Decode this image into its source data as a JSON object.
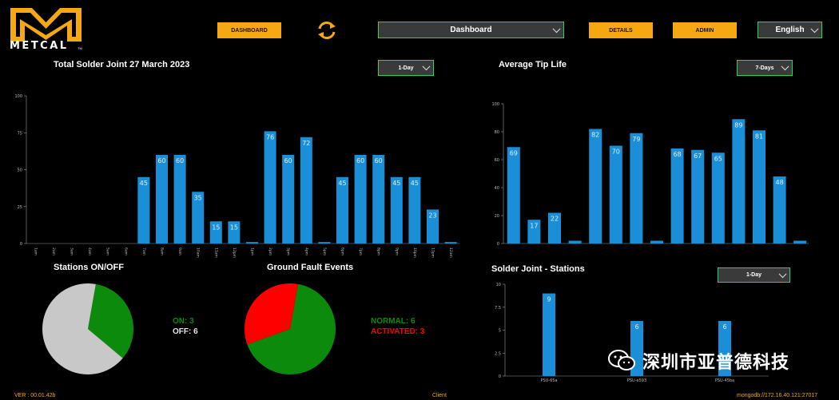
{
  "logo": {
    "text": "METCAL",
    "tm": "TM"
  },
  "nav": {
    "dashboard_btn": "DASHBOARD",
    "details_btn": "DETAILS",
    "admin_btn": "ADMIN",
    "page_select": "Dashboard",
    "language_select": "English"
  },
  "panels": {
    "solder_total": {
      "title": "Total Solder Joint 27 March 2023",
      "range": "1-Day"
    },
    "tip_life": {
      "title": "Average Tip Life",
      "range": "7-Days"
    },
    "stations": {
      "title": "Stations ON/OFF",
      "on_label": "ON: 3",
      "off_label": "OFF: 6"
    },
    "ground_fault": {
      "title": "Ground Fault Events",
      "normal_label": "NORMAL: 6",
      "activated_label": "ACTIVATED: 3"
    },
    "solder_stations": {
      "title": "Solder Joint - Stations",
      "range": "1-Day"
    }
  },
  "colors": {
    "accent": "#f5a812",
    "bar": "#1a8fd8",
    "on": "#0b8a0b",
    "off": "#c8c8c8",
    "activated": "#ff0000",
    "dropdown_border": "#2fd35b"
  },
  "chart_data": [
    {
      "id": "solder_total",
      "type": "bar",
      "categories": [
        "1am",
        "2am",
        "3am",
        "4am",
        "5am",
        "6am",
        "7am",
        "8am",
        "9am",
        "10am",
        "11am",
        "12pm",
        "1pm",
        "2pm",
        "3pm",
        "4pm",
        "5pm",
        "6pm",
        "7pm",
        "8pm",
        "9pm",
        "10pm",
        "11pm",
        "12am"
      ],
      "values": [
        0,
        0,
        0,
        0,
        0,
        0,
        45,
        60,
        60,
        35,
        15,
        15,
        1,
        76,
        60,
        72,
        1,
        45,
        60,
        60,
        45,
        45,
        23,
        1
      ],
      "ylim": [
        0,
        100
      ],
      "yticks": [
        0,
        25,
        50,
        75,
        100
      ]
    },
    {
      "id": "tip_life",
      "type": "bar",
      "categories": [
        "",
        "",
        "",
        "",
        "",
        "",
        "",
        "",
        "",
        "",
        "",
        "",
        "",
        "",
        ""
      ],
      "values": [
        69,
        17,
        22,
        2,
        82,
        70,
        79,
        2,
        68,
        67,
        65,
        89,
        81,
        48,
        2
      ],
      "ylim": [
        0,
        100
      ],
      "yticks": [
        0,
        20,
        40,
        60,
        80,
        100
      ]
    },
    {
      "id": "solder_stations",
      "type": "bar",
      "categories": [
        "PSU-65a",
        "PSU-e593",
        "PSU-45ba"
      ],
      "values": [
        9,
        6,
        6
      ],
      "ylim": [
        0,
        10
      ],
      "yticks": [
        0,
        2.5,
        5,
        7.5,
        10
      ]
    },
    {
      "id": "stations",
      "type": "pie",
      "labels": [
        "ON",
        "OFF"
      ],
      "values": [
        3,
        6
      ]
    },
    {
      "id": "ground_fault",
      "type": "pie",
      "labels": [
        "NORMAL",
        "ACTIVATED"
      ],
      "values": [
        6,
        3
      ]
    }
  ],
  "footer": {
    "version": "VER : 00.01.42b",
    "client": "Client",
    "mongo": "mongodb://172.16.40.121:27017"
  },
  "watermark": "深圳市亚普德科技"
}
